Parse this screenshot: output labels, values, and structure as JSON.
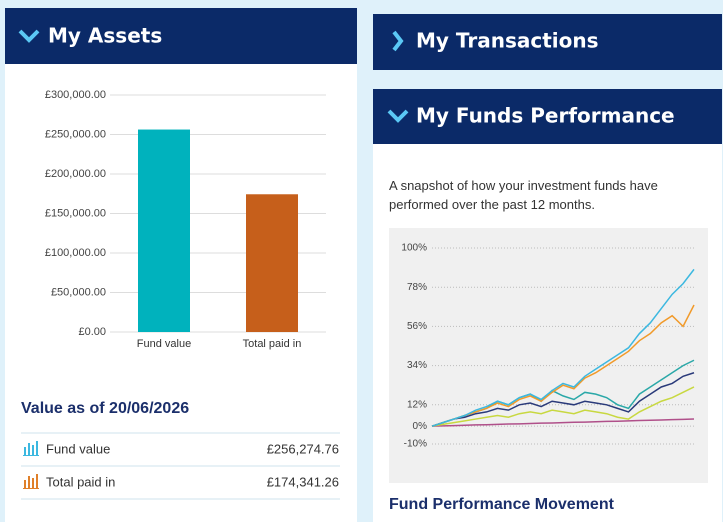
{
  "assets_title": "My Assets",
  "transactions_title": "My Transactions",
  "performance_title": "My Funds Performance",
  "performance_description": "A snapshot of how your investment funds have performed over the past 12 months.",
  "value_heading": "Value as of 20/06/2026",
  "table": {
    "rows": [
      [
        "Fund value",
        "£256,274.76"
      ],
      [
        "Total paid in",
        "£174,341.26"
      ]
    ]
  },
  "performance_footer": "Fund Performance Movement",
  "chart_data": [
    {
      "type": "bar",
      "categories": [
        "Fund value",
        "Total paid in"
      ],
      "values": [
        256274.76,
        174341.26
      ],
      "colors": [
        "#00b2bd",
        "#c65f1b"
      ],
      "ylim": [
        0,
        300000
      ],
      "yticks": [
        {
          "value": 0,
          "label": "£0.00"
        },
        {
          "value": 50000,
          "label": "£50,000.00"
        },
        {
          "value": 100000,
          "label": "£100,000.00"
        },
        {
          "value": 150000,
          "label": "£150,000.00"
        },
        {
          "value": 200000,
          "label": "£200,000.00"
        },
        {
          "value": 250000,
          "label": "£250,000.00"
        },
        {
          "value": 300000,
          "label": "£300,000.00"
        }
      ],
      "grid": true
    },
    {
      "type": "line",
      "categories": [
        null,
        null,
        null,
        null,
        null,
        null,
        null,
        null,
        null,
        null,
        null,
        null,
        null,
        null,
        null,
        null,
        null,
        null,
        null,
        null,
        null,
        null,
        null,
        null,
        null
      ],
      "series": [
        {
          "color": "#b0508a",
          "values": [
            0,
            0.2,
            0.3,
            0.5,
            0.7,
            0.8,
            1,
            1.2,
            1.3,
            1.5,
            1.7,
            1.8,
            2,
            2.2,
            2.3,
            2.5,
            2.7,
            2.8,
            3,
            3.2,
            3.3,
            3.5,
            3.7,
            3.8,
            4
          ]
        },
        {
          "color": "#c8d840",
          "values": [
            0,
            1,
            2,
            3,
            4,
            5,
            6,
            5,
            7,
            8,
            7,
            9,
            8,
            7,
            9,
            8,
            7,
            5,
            4,
            8,
            11,
            14,
            16,
            19,
            22
          ]
        },
        {
          "color": "#2a3a7a",
          "values": [
            0,
            2,
            4,
            5,
            7,
            8,
            10,
            9,
            12,
            13,
            11,
            14,
            13,
            12,
            14,
            13,
            12,
            10,
            8,
            14,
            18,
            22,
            24,
            28,
            30
          ]
        },
        {
          "color": "#2aa8a8",
          "values": [
            0,
            2,
            4,
            6,
            8,
            10,
            14,
            12,
            16,
            18,
            14,
            20,
            17,
            15,
            19,
            18,
            16,
            12,
            10,
            18,
            22,
            26,
            30,
            34,
            37
          ]
        },
        {
          "color": "#f19a2a",
          "values": [
            0,
            2,
            4,
            6,
            8,
            10,
            13,
            11,
            15,
            17,
            14,
            19,
            23,
            21,
            27,
            30,
            34,
            38,
            42,
            48,
            52,
            58,
            62,
            56,
            68
          ]
        },
        {
          "color": "#3cb8e0",
          "values": [
            0,
            2,
            4,
            6,
            9,
            11,
            14,
            12,
            16,
            18,
            15,
            20,
            24,
            22,
            28,
            32,
            36,
            40,
            44,
            52,
            58,
            66,
            74,
            80,
            88
          ]
        }
      ],
      "ylim": [
        -10,
        100
      ],
      "yticks": [
        {
          "value": -10,
          "label": "-10%"
        },
        {
          "value": 0,
          "label": "0%"
        },
        {
          "value": 12,
          "label": "12%"
        },
        {
          "value": 34,
          "label": "34%"
        },
        {
          "value": 56,
          "label": "56%"
        },
        {
          "value": 78,
          "label": "78%"
        },
        {
          "value": 100,
          "label": "100%"
        }
      ],
      "grid": true
    }
  ]
}
